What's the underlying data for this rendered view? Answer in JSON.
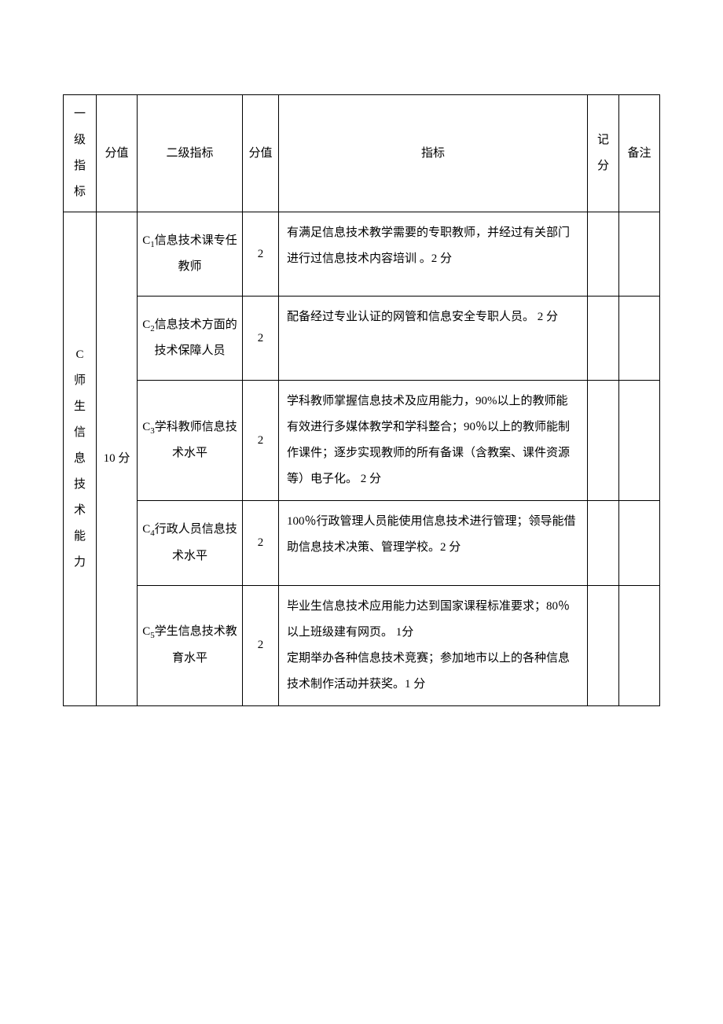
{
  "headers": {
    "level1": "一级指标",
    "score1": "分值",
    "level2": "二级指标",
    "score2": "分值",
    "indicator": "指标",
    "record": "记分",
    "remark": "备注"
  },
  "level1": {
    "code": "C",
    "chars": [
      "师",
      "生",
      "信",
      "息",
      "技",
      "术",
      "能",
      "力"
    ],
    "score": "10 分"
  },
  "rows": [
    {
      "l2_prefix": "C",
      "l2_sub": "1",
      "l2_suffix": "信息技术课专任教师",
      "score": "2",
      "indicator": "有满足信息技术教学需要的专职教师，并经过有关部门进行过信息技术内容培训 。2 分"
    },
    {
      "l2_prefix": "C",
      "l2_sub": "2",
      "l2_suffix": "信息技术方面的技术保障人员",
      "score": "2",
      "indicator": "配备经过专业认证的网管和信息安全专职人员。 2 分"
    },
    {
      "l2_prefix": "C",
      "l2_sub": "3",
      "l2_suffix": "学科教师信息技术水平",
      "score": "2",
      "indicator": "学科教师掌握信息技术及应用能力，90%以上的教师能有效进行多媒体教学和学科整合；90％以上的教师能制作课件；逐步实现教师的所有备课（含教案、课件资源等）电子化。 2 分"
    },
    {
      "l2_prefix": "C",
      "l2_sub": "4",
      "l2_suffix": "行政人员信息技术水平",
      "score": "2",
      "indicator": "100％行政管理人员能使用信息技术进行管理；领导能借助信息技术决策、管理学校。2 分"
    },
    {
      "l2_prefix": "C",
      "l2_sub": "5",
      "l2_suffix": "学生信息技术教育水平",
      "score": "2",
      "indicator": "毕业生信息技术应用能力达到国家课程标准要求；80％以上班级建有网页。 1分\n定期举办各种信息技术竞赛；参加地市以上的各种信息技术制作活动并获奖。1 分"
    }
  ]
}
